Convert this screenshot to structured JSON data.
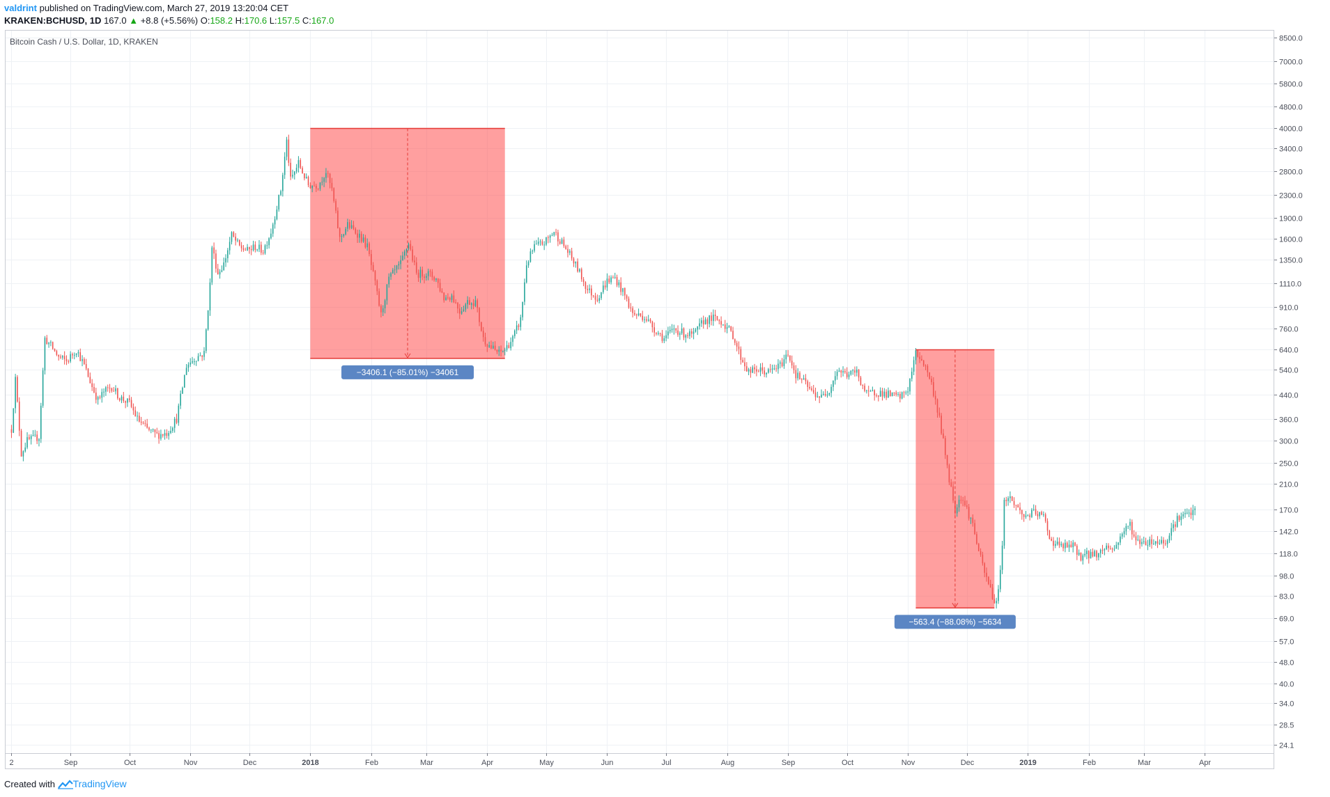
{
  "header": {
    "user": "valdrint",
    "published_text": "published on TradingView.com, March 27, 2019 13:20:04 CET",
    "symbol": "KRAKEN:BCHUSD, 1D",
    "last_price": "167.0",
    "change": "+8.8 (+5.56%)",
    "o_label": "O:",
    "o_value": "158.2",
    "h_label": "H:",
    "h_value": "170.6",
    "l_label": "L:",
    "l_value": "157.5",
    "c_label": "C:",
    "c_value": "167.0"
  },
  "chart_title": "Bitcoin Cash / U.S. Dollar, 1D, KRAKEN",
  "footer": {
    "created_with": "Created with",
    "brand": "TradingView"
  },
  "colors": {
    "up": "#26a69a",
    "down": "#ef5350",
    "range_fill": "#ff5050",
    "range_line": "#e53935",
    "label_bg": "#5b86c4",
    "grid": "#eef1f5",
    "axis": "#787b86"
  },
  "chart_data": {
    "type": "candlestick",
    "title": "Bitcoin Cash / U.S. Dollar, 1D, KRAKEN",
    "y_scale": "log",
    "y_ticks": [
      8500.0,
      7000.0,
      5800.0,
      4800.0,
      4000.0,
      3400.0,
      2800.0,
      2300.0,
      1900.0,
      1600.0,
      1350.0,
      1110.0,
      910.0,
      760.0,
      640.0,
      540.0,
      440.0,
      360.0,
      300.0,
      250.0,
      210.0,
      170.0,
      142.0,
      118.0,
      98.0,
      83.0,
      69.0,
      57.0,
      48.0,
      40.0,
      34.0,
      28.5,
      24.1
    ],
    "x_ticks": [
      {
        "label": "2",
        "date": "2017-08-02",
        "bold": false
      },
      {
        "label": "Sep",
        "date": "2017-09-01",
        "bold": false
      },
      {
        "label": "Oct",
        "date": "2017-10-01",
        "bold": false
      },
      {
        "label": "Nov",
        "date": "2017-11-01",
        "bold": false
      },
      {
        "label": "Dec",
        "date": "2017-12-01",
        "bold": false
      },
      {
        "label": "2018",
        "date": "2018-01-01",
        "bold": true
      },
      {
        "label": "Feb",
        "date": "2018-02-01",
        "bold": false
      },
      {
        "label": "Mar",
        "date": "2018-03-01",
        "bold": false
      },
      {
        "label": "Apr",
        "date": "2018-04-01",
        "bold": false
      },
      {
        "label": "May",
        "date": "2018-05-01",
        "bold": false
      },
      {
        "label": "Jun",
        "date": "2018-06-01",
        "bold": false
      },
      {
        "label": "Jul",
        "date": "2018-07-01",
        "bold": false
      },
      {
        "label": "Aug",
        "date": "2018-08-01",
        "bold": false
      },
      {
        "label": "Sep",
        "date": "2018-09-01",
        "bold": false
      },
      {
        "label": "Oct",
        "date": "2018-10-01",
        "bold": false
      },
      {
        "label": "Nov",
        "date": "2018-11-01",
        "bold": false
      },
      {
        "label": "Dec",
        "date": "2018-12-01",
        "bold": false
      },
      {
        "label": "2019",
        "date": "2019-01-01",
        "bold": true
      },
      {
        "label": "Feb",
        "date": "2019-02-01",
        "bold": false
      },
      {
        "label": "Mar",
        "date": "2019-03-01",
        "bold": false
      },
      {
        "label": "Apr",
        "date": "2019-04-01",
        "bold": false
      }
    ],
    "y_range": [
      22.5,
      9000
    ],
    "x_range": [
      "2017-07-30",
      "2019-05-06"
    ],
    "price_path": [
      [
        "2017-08-02",
        330
      ],
      [
        "2017-08-04",
        500
      ],
      [
        "2017-08-07",
        270
      ],
      [
        "2017-08-10",
        300
      ],
      [
        "2017-08-16",
        310
      ],
      [
        "2017-08-19",
        700
      ],
      [
        "2017-08-22",
        660
      ],
      [
        "2017-08-26",
        600
      ],
      [
        "2017-08-30",
        580
      ],
      [
        "2017-09-04",
        640
      ],
      [
        "2017-09-08",
        560
      ],
      [
        "2017-09-12",
        470
      ],
      [
        "2017-09-15",
        420
      ],
      [
        "2017-09-18",
        450
      ],
      [
        "2017-09-22",
        470
      ],
      [
        "2017-09-26",
        430
      ],
      [
        "2017-10-01",
        410
      ],
      [
        "2017-10-05",
        360
      ],
      [
        "2017-10-10",
        330
      ],
      [
        "2017-10-15",
        315
      ],
      [
        "2017-10-20",
        320
      ],
      [
        "2017-10-25",
        360
      ],
      [
        "2017-10-30",
        560
      ],
      [
        "2017-11-04",
        600
      ],
      [
        "2017-11-08",
        620
      ],
      [
        "2017-11-11",
        1100
      ],
      [
        "2017-11-12",
        1500
      ],
      [
        "2017-11-15",
        1200
      ],
      [
        "2017-11-18",
        1300
      ],
      [
        "2017-11-22",
        1650
      ],
      [
        "2017-11-26",
        1500
      ],
      [
        "2017-11-30",
        1450
      ],
      [
        "2017-12-04",
        1500
      ],
      [
        "2017-12-08",
        1450
      ],
      [
        "2017-12-12",
        1700
      ],
      [
        "2017-12-17",
        2400
      ],
      [
        "2017-12-20",
        3600
      ],
      [
        "2017-12-22",
        2600
      ],
      [
        "2017-12-26",
        3000
      ],
      [
        "2017-12-31",
        2500
      ],
      [
        "2018-01-05",
        2500
      ],
      [
        "2018-01-09",
        2800
      ],
      [
        "2018-01-12",
        2400
      ],
      [
        "2018-01-16",
        1600
      ],
      [
        "2018-01-20",
        1800
      ],
      [
        "2018-01-26",
        1650
      ],
      [
        "2018-01-30",
        1500
      ],
      [
        "2018-02-03",
        1100
      ],
      [
        "2018-02-06",
        850
      ],
      [
        "2018-02-10",
        1150
      ],
      [
        "2018-02-16",
        1300
      ],
      [
        "2018-02-20",
        1550
      ],
      [
        "2018-02-24",
        1200
      ],
      [
        "2018-03-02",
        1200
      ],
      [
        "2018-03-06",
        1150
      ],
      [
        "2018-03-10",
        980
      ],
      [
        "2018-03-14",
        1000
      ],
      [
        "2018-03-18",
        880
      ],
      [
        "2018-03-22",
        950
      ],
      [
        "2018-03-26",
        950
      ],
      [
        "2018-03-30",
        700
      ],
      [
        "2018-04-03",
        650
      ],
      [
        "2018-04-07",
        620
      ],
      [
        "2018-04-10",
        640
      ],
      [
        "2018-04-14",
        700
      ],
      [
        "2018-04-18",
        820
      ],
      [
        "2018-04-21",
        1300
      ],
      [
        "2018-04-25",
        1500
      ],
      [
        "2018-04-30",
        1550
      ],
      [
        "2018-05-05",
        1700
      ],
      [
        "2018-05-09",
        1550
      ],
      [
        "2018-05-13",
        1400
      ],
      [
        "2018-05-17",
        1250
      ],
      [
        "2018-05-22",
        1050
      ],
      [
        "2018-05-27",
        980
      ],
      [
        "2018-06-01",
        1130
      ],
      [
        "2018-06-05",
        1160
      ],
      [
        "2018-06-10",
        1000
      ],
      [
        "2018-06-14",
        860
      ],
      [
        "2018-06-20",
        840
      ],
      [
        "2018-06-25",
        760
      ],
      [
        "2018-06-30",
        700
      ],
      [
        "2018-07-05",
        760
      ],
      [
        "2018-07-10",
        730
      ],
      [
        "2018-07-15",
        720
      ],
      [
        "2018-07-20",
        810
      ],
      [
        "2018-07-25",
        830
      ],
      [
        "2018-07-30",
        800
      ],
      [
        "2018-08-04",
        720
      ],
      [
        "2018-08-08",
        600
      ],
      [
        "2018-08-12",
        530
      ],
      [
        "2018-08-16",
        540
      ],
      [
        "2018-08-22",
        530
      ],
      [
        "2018-08-28",
        560
      ],
      [
        "2018-09-01",
        620
      ],
      [
        "2018-09-05",
        520
      ],
      [
        "2018-09-09",
        490
      ],
      [
        "2018-09-13",
        450
      ],
      [
        "2018-09-18",
        430
      ],
      [
        "2018-09-22",
        460
      ],
      [
        "2018-09-26",
        540
      ],
      [
        "2018-10-01",
        520
      ],
      [
        "2018-10-06",
        530
      ],
      [
        "2018-10-11",
        440
      ],
      [
        "2018-10-16",
        450
      ],
      [
        "2018-10-22",
        440
      ],
      [
        "2018-10-28",
        430
      ],
      [
        "2018-11-01",
        460
      ],
      [
        "2018-11-05",
        620
      ],
      [
        "2018-11-08",
        590
      ],
      [
        "2018-11-12",
        510
      ],
      [
        "2018-11-15",
        420
      ],
      [
        "2018-11-17",
        360
      ],
      [
        "2018-11-20",
        270
      ],
      [
        "2018-11-22",
        220
      ],
      [
        "2018-11-25",
        170
      ],
      [
        "2018-11-28",
        190
      ],
      [
        "2018-12-01",
        170
      ],
      [
        "2018-12-04",
        150
      ],
      [
        "2018-12-07",
        120
      ],
      [
        "2018-12-10",
        100
      ],
      [
        "2018-12-13",
        88
      ],
      [
        "2018-12-15",
        78
      ],
      [
        "2018-12-17",
        85
      ],
      [
        "2018-12-19",
        130
      ],
      [
        "2018-12-20",
        180
      ],
      [
        "2018-12-22",
        190
      ],
      [
        "2018-12-26",
        175
      ],
      [
        "2018-12-30",
        160
      ],
      [
        "2019-01-04",
        165
      ],
      [
        "2019-01-09",
        160
      ],
      [
        "2019-01-13",
        130
      ],
      [
        "2019-01-18",
        125
      ],
      [
        "2019-01-24",
        125
      ],
      [
        "2019-01-28",
        115
      ],
      [
        "2019-02-01",
        117
      ],
      [
        "2019-02-06",
        118
      ],
      [
        "2019-02-10",
        125
      ],
      [
        "2019-02-14",
        122
      ],
      [
        "2019-02-18",
        140
      ],
      [
        "2019-02-22",
        150
      ],
      [
        "2019-02-25",
        130
      ],
      [
        "2019-03-01",
        130
      ],
      [
        "2019-03-06",
        130
      ],
      [
        "2019-03-12",
        130
      ],
      [
        "2019-03-15",
        145
      ],
      [
        "2019-03-19",
        160
      ],
      [
        "2019-03-23",
        162
      ],
      [
        "2019-03-27",
        167
      ]
    ],
    "range_measures": [
      {
        "start": "2018-01-01",
        "end": "2018-04-10",
        "top": 4000,
        "bottom": 594,
        "label": "−3406.1 (−85.01%) −34061"
      },
      {
        "start": "2018-11-05",
        "end": "2018-12-15",
        "top": 638,
        "bottom": 75,
        "label": "−563.4 (−88.08%) −5634"
      }
    ]
  }
}
